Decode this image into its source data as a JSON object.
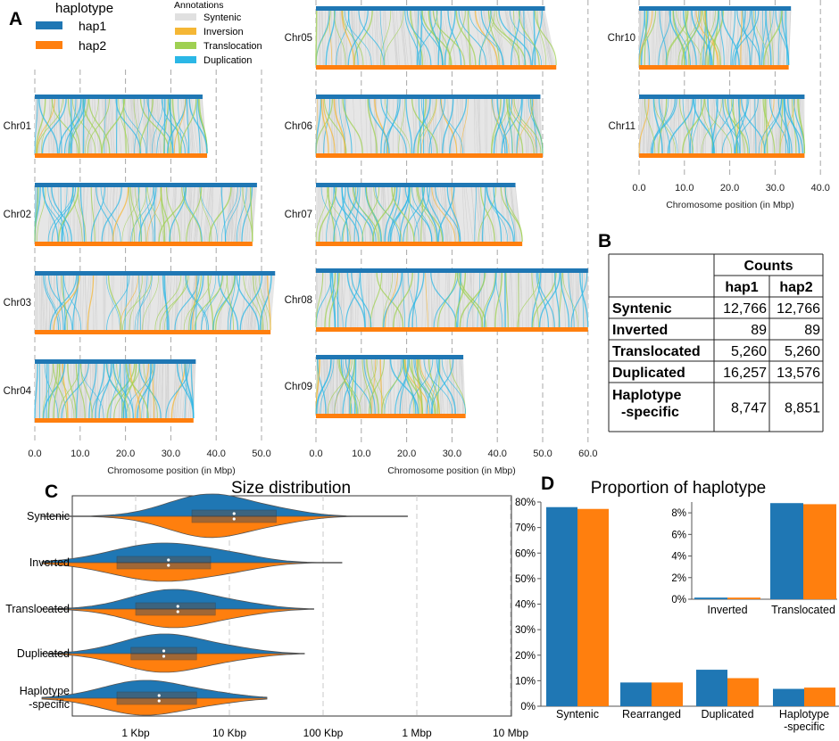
{
  "colors": {
    "hap1": "#1f77b4",
    "hap2": "#ff7f0e",
    "syntenic": "#e0e0e0",
    "inversion": "#f5b735",
    "translocation": "#9fd052",
    "duplication": "#2bb7e6"
  },
  "panelA": {
    "label": "A",
    "legend": {
      "title": "haplotype",
      "items": [
        "hap1",
        "hap2"
      ]
    },
    "annotations": {
      "title": "Annotations",
      "items": [
        "Syntenic",
        "Inversion",
        "Translocation",
        "Duplication"
      ]
    },
    "xlabel": "Chromosome position (in Mbp)",
    "chromosomes": [
      {
        "name": "Chr01",
        "hap1": 37,
        "hap2": 38
      },
      {
        "name": "Chr02",
        "hap1": 49,
        "hap2": 48
      },
      {
        "name": "Chr03",
        "hap1": 53,
        "hap2": 52
      },
      {
        "name": "Chr04",
        "hap1": 35.5,
        "hap2": 35
      },
      {
        "name": "Chr05",
        "hap1": 50.5,
        "hap2": 53
      },
      {
        "name": "Chr06",
        "hap1": 49.5,
        "hap2": 50
      },
      {
        "name": "Chr07",
        "hap1": 44,
        "hap2": 45.5
      },
      {
        "name": "Chr08",
        "hap1": 60,
        "hap2": 60
      },
      {
        "name": "Chr09",
        "hap1": 32.5,
        "hap2": 33
      },
      {
        "name": "Chr10",
        "hap1": 33.5,
        "hap2": 33
      },
      {
        "name": "Chr11",
        "hap1": 36.5,
        "hap2": 36.5
      }
    ],
    "xticks_col1": [
      "0.0",
      "10.0",
      "20.0",
      "30.0",
      "40.0",
      "50.0"
    ],
    "xticks_col2": [
      "0.0",
      "10.0",
      "20.0",
      "30.0",
      "40.0",
      "50.0",
      "60.0"
    ],
    "xticks_col3": [
      "0.0",
      "10.0",
      "20.0",
      "30.0",
      "40.0"
    ]
  },
  "panelB": {
    "label": "B",
    "header": "Counts",
    "columns": [
      "hap1",
      "hap2"
    ],
    "rows": [
      {
        "name": "Syntenic",
        "hap1": "12,766",
        "hap2": "12,766"
      },
      {
        "name": "Inverted",
        "hap1": "89",
        "hap2": "89"
      },
      {
        "name": "Translocated",
        "hap1": "5,260",
        "hap2": "5,260"
      },
      {
        "name": "Duplicated",
        "hap1": "16,257",
        "hap2": "13,576"
      },
      {
        "name": "Haplotype\n-specific",
        "hap1": "8,747",
        "hap2": "8,851"
      }
    ]
  },
  "panelC": {
    "label": "C",
    "title": "Size distribution",
    "xticks": [
      "1 Kbp",
      "10 Kbp",
      "100 Kbp",
      "1 Mbp",
      "10 Mbp"
    ],
    "categories": [
      "Syntenic",
      "Inverted",
      "Translocated",
      "Duplicated",
      "Haplotype\n-specific"
    ]
  },
  "chart_data": {
    "type": "bar",
    "title": "Proportion of haplotype",
    "categories": [
      "Syntenic",
      "Rearranged",
      "Duplicated",
      "Haplotype\n-specific"
    ],
    "series": [
      {
        "name": "hap1",
        "values": [
          78.0,
          9.3,
          14.3,
          6.8
        ]
      },
      {
        "name": "hap2",
        "values": [
          77.3,
          9.3,
          11.0,
          7.3
        ]
      }
    ],
    "ylim": [
      0,
      80
    ],
    "yticks": [
      "0%",
      "10%",
      "20%",
      "30%",
      "40%",
      "50%",
      "60%",
      "70%",
      "80%"
    ],
    "inset": {
      "categories": [
        "Inverted",
        "Translocated"
      ],
      "series": [
        {
          "name": "hap1",
          "values": [
            0.15,
            8.9
          ]
        },
        {
          "name": "hap2",
          "values": [
            0.15,
            8.8
          ]
        }
      ],
      "ylim": [
        0,
        9
      ],
      "yticks": [
        "0%",
        "2%",
        "4%",
        "6%",
        "8%"
      ]
    },
    "label": "D"
  }
}
